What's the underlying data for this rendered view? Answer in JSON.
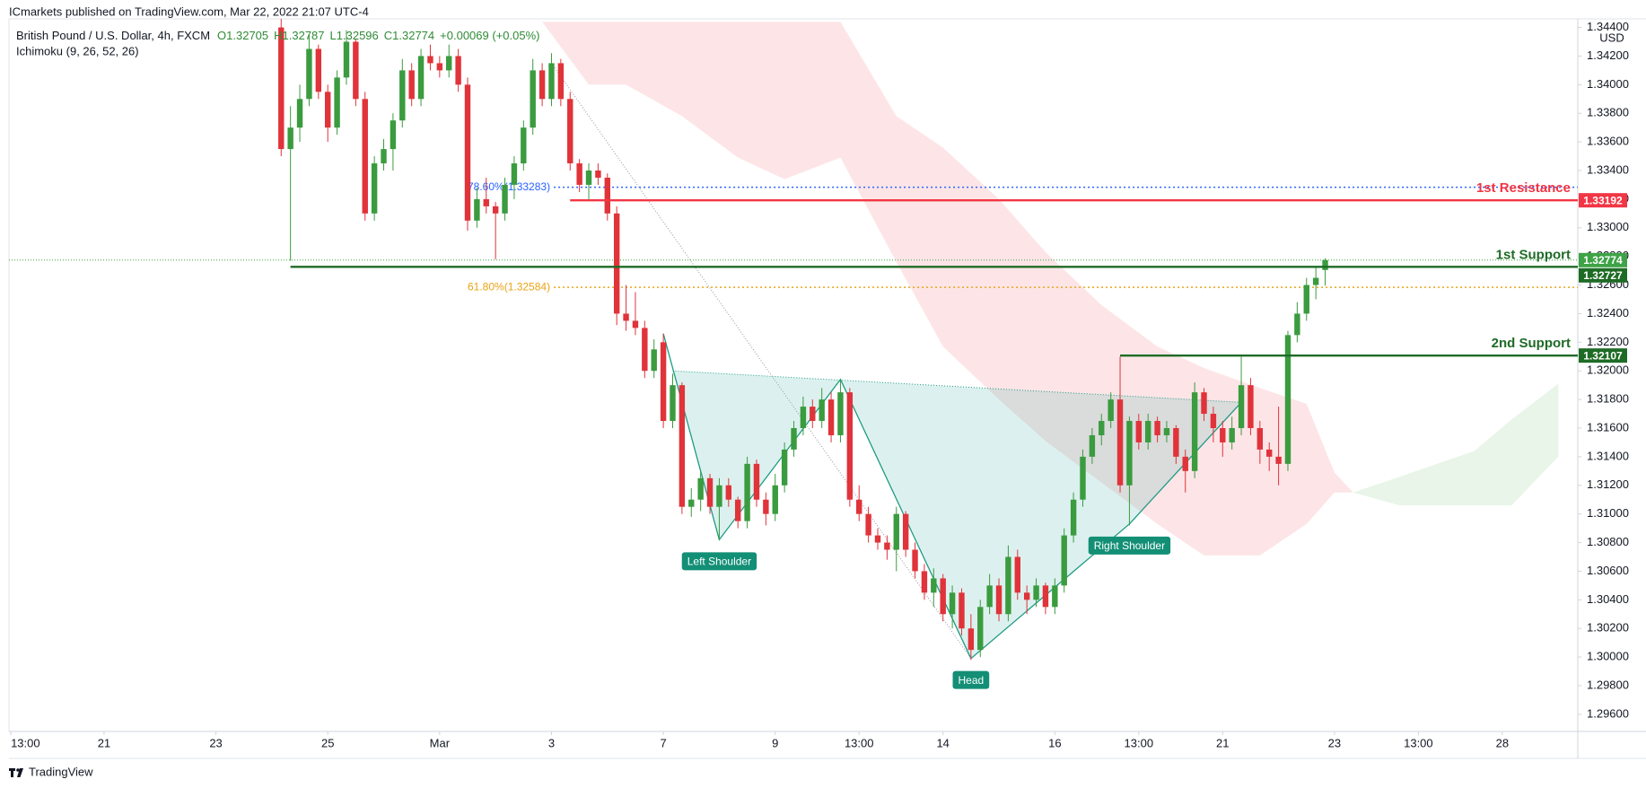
{
  "header": {
    "publisher": "ICmarkets published on TradingView.com, Mar 22, 2022 21:07 UTC-4"
  },
  "footer": {
    "brand": "TradingView"
  },
  "chart_data": {
    "type": "candlestick",
    "legend": {
      "symbol": "British Pound / U.S. Dollar, 4h, FXCM",
      "open": "O1.32705",
      "high": "H1.32787",
      "low": "L1.32596",
      "close": "C1.32774",
      "change": "+0.00069 (+0.05%)",
      "indicator": "Ichimoku (9, 26, 52, 26)"
    },
    "axis_unit": "USD",
    "up_color": "#3a9b3f",
    "down_color": "#e0333a",
    "xlim": [
      -29.2,
      139.1
    ],
    "xticks": [
      {
        "value": -29,
        "label": "13:00"
      },
      {
        "value": -19,
        "label": "21"
      },
      {
        "value": -7,
        "label": "23"
      },
      {
        "value": 5,
        "label": "25"
      },
      {
        "value": 17,
        "label": "Mar"
      },
      {
        "value": 29,
        "label": "3"
      },
      {
        "value": 41,
        "label": "7"
      },
      {
        "value": 53,
        "label": "9"
      },
      {
        "value": 62,
        "label": "13:00"
      },
      {
        "value": 71,
        "label": "14"
      },
      {
        "value": 83,
        "label": "16"
      },
      {
        "value": 92,
        "label": "13:00"
      },
      {
        "value": 101,
        "label": "21"
      },
      {
        "value": 113,
        "label": "23"
      },
      {
        "value": 122,
        "label": "13:00"
      },
      {
        "value": 131,
        "label": "28"
      }
    ],
    "ylim": [
      1.2948,
      1.3446
    ],
    "yticks": [
      {
        "value": 1.296,
        "label": "1.29600"
      },
      {
        "value": 1.298,
        "label": "1.29800"
      },
      {
        "value": 1.3,
        "label": "1.30000"
      },
      {
        "value": 1.302,
        "label": "1.30200"
      },
      {
        "value": 1.304,
        "label": "1.30400"
      },
      {
        "value": 1.306,
        "label": "1.30600"
      },
      {
        "value": 1.308,
        "label": "1.30800"
      },
      {
        "value": 1.31,
        "label": "1.31000"
      },
      {
        "value": 1.312,
        "label": "1.31200"
      },
      {
        "value": 1.314,
        "label": "1.31400"
      },
      {
        "value": 1.316,
        "label": "1.31600"
      },
      {
        "value": 1.318,
        "label": "1.31800"
      },
      {
        "value": 1.32,
        "label": "1.32000"
      },
      {
        "value": 1.322,
        "label": "1.32200"
      },
      {
        "value": 1.324,
        "label": "1.32400"
      },
      {
        "value": 1.326,
        "label": "1.32600"
      },
      {
        "value": 1.328,
        "label": "1.32800"
      },
      {
        "value": 1.33,
        "label": "1.33000"
      },
      {
        "value": 1.332,
        "label": "1.33200"
      },
      {
        "value": 1.334,
        "label": "1.33400"
      },
      {
        "value": 1.336,
        "label": "1.33600"
      },
      {
        "value": 1.338,
        "label": "1.33800"
      },
      {
        "value": 1.34,
        "label": "1.34000"
      },
      {
        "value": 1.342,
        "label": "1.34200"
      },
      {
        "value": 1.344,
        "label": "1.34400"
      }
    ],
    "grid": false,
    "candles": [
      [
        0,
        1.344,
        1.3446,
        1.335,
        1.3355
      ],
      [
        1,
        1.3355,
        1.3385,
        1.3277,
        1.337
      ],
      [
        2,
        1.337,
        1.34,
        1.336,
        1.339
      ],
      [
        3,
        1.339,
        1.3435,
        1.3385,
        1.3425
      ],
      [
        4,
        1.3425,
        1.3428,
        1.339,
        1.3395
      ],
      [
        5,
        1.3395,
        1.34,
        1.336,
        1.337
      ],
      [
        6,
        1.337,
        1.341,
        1.3365,
        1.3405
      ],
      [
        7,
        1.3405,
        1.3438,
        1.34,
        1.343
      ],
      [
        8,
        1.343,
        1.3432,
        1.3385,
        1.339
      ],
      [
        9,
        1.339,
        1.3395,
        1.3305,
        1.331
      ],
      [
        10,
        1.331,
        1.335,
        1.3305,
        1.3345
      ],
      [
        11,
        1.3345,
        1.3362,
        1.334,
        1.3355
      ],
      [
        12,
        1.3355,
        1.338,
        1.334,
        1.3375
      ],
      [
        13,
        1.3375,
        1.3418,
        1.337,
        1.341
      ],
      [
        14,
        1.341,
        1.3415,
        1.3385,
        1.339
      ],
      [
        15,
        1.339,
        1.3425,
        1.3385,
        1.342
      ],
      [
        16,
        1.342,
        1.3428,
        1.341,
        1.3415
      ],
      [
        17,
        1.3415,
        1.342,
        1.3405,
        1.341
      ],
      [
        18,
        1.341,
        1.3428,
        1.3405,
        1.342
      ],
      [
        19,
        1.342,
        1.3425,
        1.3395,
        1.34
      ],
      [
        20,
        1.34,
        1.3405,
        1.3298,
        1.3305
      ],
      [
        21,
        1.3305,
        1.3328,
        1.33,
        1.332
      ],
      [
        22,
        1.332,
        1.3335,
        1.331,
        1.3315
      ],
      [
        23,
        1.3315,
        1.3318,
        1.3278,
        1.331
      ],
      [
        24,
        1.331,
        1.3335,
        1.3305,
        1.333
      ],
      [
        25,
        1.333,
        1.335,
        1.332,
        1.3345
      ],
      [
        26,
        1.3345,
        1.3375,
        1.334,
        1.337
      ],
      [
        27,
        1.337,
        1.3418,
        1.3365,
        1.341
      ],
      [
        28,
        1.341,
        1.3415,
        1.3385,
        1.339
      ],
      [
        29,
        1.339,
        1.3422,
        1.3385,
        1.3415
      ],
      [
        30,
        1.3415,
        1.3418,
        1.3385,
        1.339
      ],
      [
        31,
        1.339,
        1.3395,
        1.334,
        1.3345
      ],
      [
        32,
        1.3345,
        1.3348,
        1.3325,
        1.333
      ],
      [
        33,
        1.333,
        1.3345,
        1.332,
        1.334
      ],
      [
        34,
        1.334,
        1.3345,
        1.333,
        1.3335
      ],
      [
        35,
        1.3335,
        1.3338,
        1.3305,
        1.331
      ],
      [
        36,
        1.331,
        1.3315,
        1.3232,
        1.324
      ],
      [
        37,
        1.324,
        1.326,
        1.3228,
        1.3235
      ],
      [
        38,
        1.3235,
        1.3255,
        1.3225,
        1.323
      ],
      [
        39,
        1.323,
        1.3235,
        1.3195,
        1.32
      ],
      [
        40,
        1.32,
        1.3222,
        1.3195,
        1.3215
      ],
      [
        41,
        1.322,
        1.3226,
        1.316,
        1.3165
      ],
      [
        42,
        1.3165,
        1.3198,
        1.316,
        1.319
      ],
      [
        43,
        1.319,
        1.3192,
        1.31,
        1.3105
      ],
      [
        44,
        1.3105,
        1.3118,
        1.3098,
        1.311
      ],
      [
        45,
        1.311,
        1.313,
        1.3102,
        1.3125
      ],
      [
        46,
        1.3125,
        1.3128,
        1.31,
        1.3105
      ],
      [
        47,
        1.3105,
        1.3125,
        1.3082,
        1.312
      ],
      [
        48,
        1.312,
        1.3125,
        1.3105,
        1.311
      ],
      [
        49,
        1.311,
        1.3112,
        1.309,
        1.3095
      ],
      [
        50,
        1.3095,
        1.314,
        1.309,
        1.3135
      ],
      [
        51,
        1.3135,
        1.3138,
        1.3105,
        1.311
      ],
      [
        52,
        1.311,
        1.3115,
        1.3092,
        1.31
      ],
      [
        53,
        1.31,
        1.3128,
        1.3095,
        1.312
      ],
      [
        54,
        1.312,
        1.315,
        1.3115,
        1.3145
      ],
      [
        55,
        1.3145,
        1.3165,
        1.314,
        1.316
      ],
      [
        56,
        1.316,
        1.3182,
        1.3155,
        1.3175
      ],
      [
        57,
        1.3175,
        1.318,
        1.316,
        1.3165
      ],
      [
        58,
        1.3165,
        1.3188,
        1.316,
        1.318
      ],
      [
        59,
        1.318,
        1.3185,
        1.315,
        1.3155
      ],
      [
        60,
        1.3155,
        1.3194,
        1.315,
        1.3185
      ],
      [
        61,
        1.3185,
        1.3188,
        1.3105,
        1.311
      ],
      [
        62,
        1.311,
        1.312,
        1.3095,
        1.31
      ],
      [
        63,
        1.31,
        1.3105,
        1.308,
        1.3085
      ],
      [
        64,
        1.3085,
        1.309,
        1.3075,
        1.308
      ],
      [
        65,
        1.308,
        1.3085,
        1.3068,
        1.3075
      ],
      [
        66,
        1.3075,
        1.3105,
        1.306,
        1.31
      ],
      [
        67,
        1.31,
        1.3102,
        1.307,
        1.3075
      ],
      [
        68,
        1.3075,
        1.308,
        1.3055,
        1.306
      ],
      [
        69,
        1.306,
        1.3065,
        1.304,
        1.3045
      ],
      [
        70,
        1.3045,
        1.3062,
        1.3035,
        1.3055
      ],
      [
        71,
        1.3055,
        1.3058,
        1.3025,
        1.303
      ],
      [
        72,
        1.303,
        1.305,
        1.302,
        1.3045
      ],
      [
        73,
        1.3045,
        1.3048,
        1.3015,
        1.302
      ],
      [
        74,
        1.302,
        1.303,
        1.2998,
        1.3005
      ],
      [
        75,
        1.3005,
        1.304,
        1.3,
        1.3035
      ],
      [
        76,
        1.3035,
        1.3058,
        1.303,
        1.305
      ],
      [
        77,
        1.305,
        1.3055,
        1.3025,
        1.303
      ],
      [
        78,
        1.303,
        1.3078,
        1.3025,
        1.307
      ],
      [
        79,
        1.307,
        1.3075,
        1.304,
        1.3045
      ],
      [
        80,
        1.3045,
        1.305,
        1.303,
        1.304
      ],
      [
        81,
        1.304,
        1.3055,
        1.3035,
        1.305
      ],
      [
        82,
        1.305,
        1.3052,
        1.303,
        1.3035
      ],
      [
        83,
        1.3035,
        1.3055,
        1.303,
        1.305
      ],
      [
        84,
        1.305,
        1.309,
        1.3045,
        1.3085
      ],
      [
        85,
        1.3085,
        1.3115,
        1.308,
        1.311
      ],
      [
        86,
        1.311,
        1.3145,
        1.3105,
        1.314
      ],
      [
        87,
        1.314,
        1.316,
        1.3135,
        1.3155
      ],
      [
        88,
        1.3155,
        1.317,
        1.3148,
        1.3165
      ],
      [
        89,
        1.3165,
        1.3185,
        1.316,
        1.318
      ],
      [
        90,
        1.318,
        1.321,
        1.3115,
        1.312
      ],
      [
        91,
        1.312,
        1.3168,
        1.3092,
        1.3165
      ],
      [
        92,
        1.3165,
        1.317,
        1.3145,
        1.315
      ],
      [
        93,
        1.315,
        1.317,
        1.3145,
        1.3165
      ],
      [
        94,
        1.3165,
        1.3168,
        1.315,
        1.3155
      ],
      [
        95,
        1.3155,
        1.3165,
        1.315,
        1.316
      ],
      [
        96,
        1.316,
        1.3162,
        1.3135,
        1.314
      ],
      [
        97,
        1.314,
        1.3145,
        1.3115,
        1.313
      ],
      [
        98,
        1.313,
        1.3192,
        1.3125,
        1.3185
      ],
      [
        99,
        1.3185,
        1.3188,
        1.3165,
        1.317
      ],
      [
        100,
        1.317,
        1.3175,
        1.315,
        1.316
      ],
      [
        101,
        1.316,
        1.3165,
        1.314,
        1.315
      ],
      [
        102,
        1.315,
        1.3168,
        1.3145,
        1.316
      ],
      [
        103,
        1.316,
        1.321,
        1.3155,
        1.319
      ],
      [
        104,
        1.319,
        1.3195,
        1.3155,
        1.316
      ],
      [
        105,
        1.316,
        1.3165,
        1.3135,
        1.3145
      ],
      [
        106,
        1.3145,
        1.315,
        1.313,
        1.314
      ],
      [
        107,
        1.314,
        1.3175,
        1.312,
        1.3135
      ],
      [
        108,
        1.3135,
        1.3228,
        1.313,
        1.3225
      ],
      [
        109,
        1.3225,
        1.3248,
        1.322,
        1.324
      ],
      [
        110,
        1.324,
        1.3265,
        1.3235,
        1.326
      ],
      [
        111,
        1.326,
        1.3272,
        1.325,
        1.3265
      ],
      [
        112,
        1.32705,
        1.32787,
        1.32596,
        1.32774
      ]
    ],
    "cloud": [
      {
        "color": "rgba(242,54,69,0.13)",
        "x": [
          28,
          33,
          37,
          43,
          49,
          54,
          60,
          66,
          71,
          77,
          82,
          88,
          94,
          99,
          105,
          110,
          113,
          115
        ],
        "upper": [
          1.3444,
          1.3444,
          1.3444,
          1.3444,
          1.3444,
          1.3444,
          1.3444,
          1.3378,
          1.3356,
          1.332,
          1.3283,
          1.3246,
          1.3217,
          1.3202,
          1.3188,
          1.3177,
          1.3129,
          1.3115
        ],
        "lower": [
          1.3444,
          1.34,
          1.34,
          1.3378,
          1.3349,
          1.3334,
          1.3349,
          1.3276,
          1.3217,
          1.318,
          1.3151,
          1.3122,
          1.3093,
          1.3071,
          1.3071,
          1.3093,
          1.3115,
          1.3115
        ]
      },
      {
        "color": "rgba(76,175,80,0.13)",
        "x": [
          115,
          120,
          128,
          132,
          137
        ],
        "upper": [
          1.3115,
          1.3126,
          1.3144,
          1.3166,
          1.3191
        ],
        "lower": [
          1.3115,
          1.3106,
          1.3106,
          1.3106,
          1.314
        ]
      }
    ],
    "levels": [
      {
        "name": "1st Resistance",
        "value": 1.33192,
        "start": 31,
        "color": "#f23645"
      },
      {
        "name": "1st Support",
        "value": 1.32727,
        "start": 1,
        "color": "#1e6b26"
      },
      {
        "name": "2nd Support",
        "value": 1.32107,
        "start": 90,
        "color": "#1e6b26"
      }
    ],
    "last_price": {
      "value": 1.32774,
      "color": "#3ea346"
    },
    "fib_levels": [
      {
        "label": "78.60%(1.33283)",
        "value": 1.33283,
        "start": 20,
        "color": "#2962ff"
      },
      {
        "label": "61.80%(1.32584)",
        "value": 1.32584,
        "start": 20,
        "color": "#e8a317"
      }
    ],
    "trendline": {
      "x": [
        29,
        74
      ],
      "y": [
        1.3415,
        1.2999
      ]
    },
    "pattern": {
      "color": "#1e9b83",
      "points": [
        {
          "x": 41,
          "y": 1.3226
        },
        {
          "x": 47,
          "y": 1.3082,
          "label": "Left Shoulder"
        },
        {
          "x": 60,
          "y": 1.3194
        },
        {
          "x": 74,
          "y": 1.2999,
          "label": "Head"
        },
        {
          "x": 91,
          "y": 1.3093,
          "label": "Right Shoulder"
        },
        {
          "x": 103,
          "y": 1.3178
        }
      ],
      "neckline": {
        "x": [
          42,
          103
        ],
        "y": [
          1.32,
          1.3178
        ]
      }
    }
  }
}
